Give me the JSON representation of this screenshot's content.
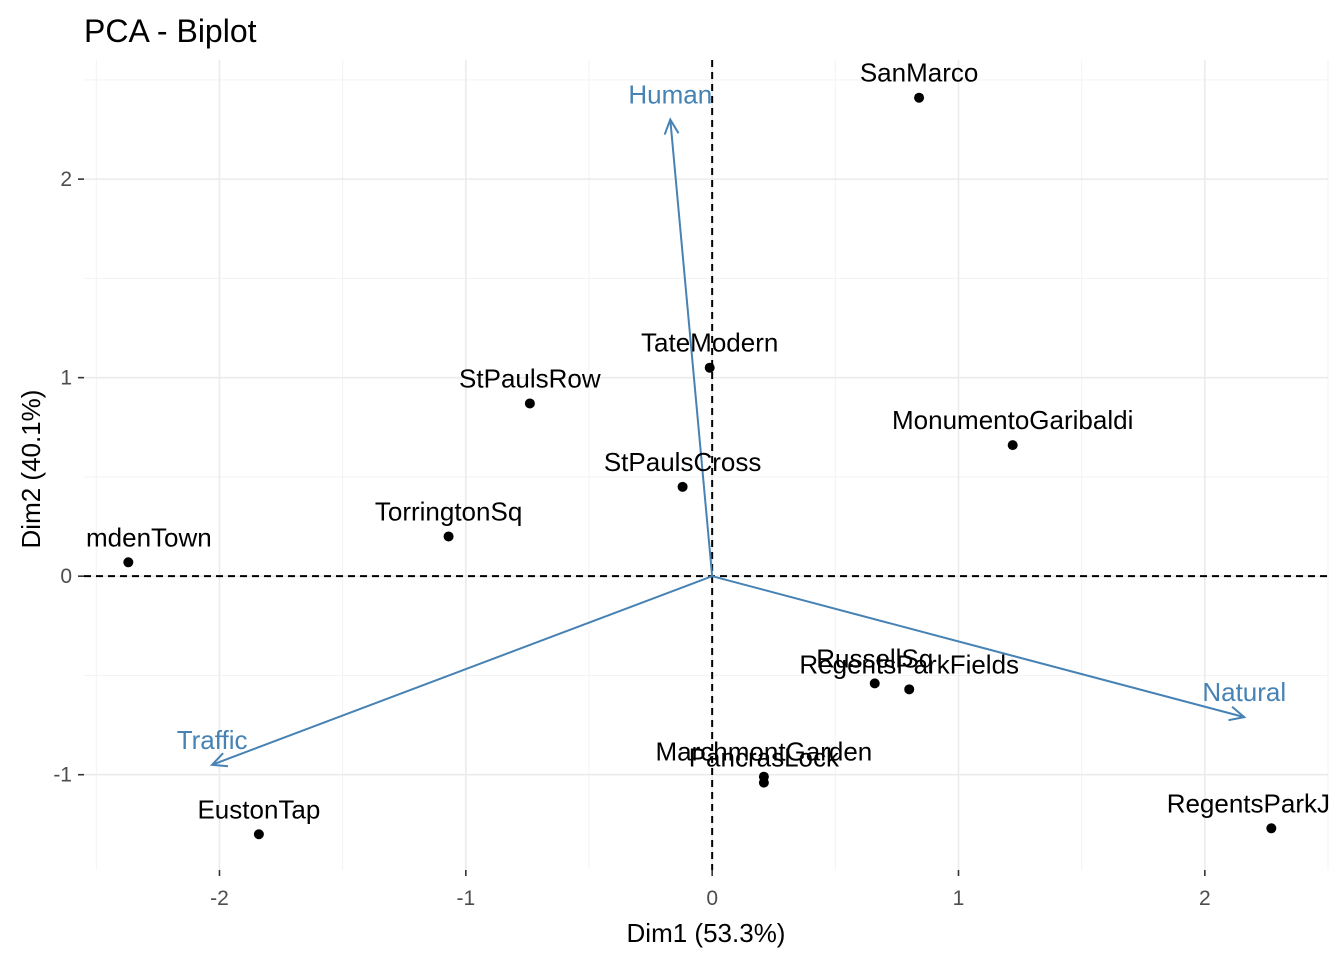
{
  "chart_data": {
    "type": "scatter",
    "title": "PCA - Biplot",
    "xlabel": "Dim1 (53.3%)",
    "ylabel": "Dim2 (40.1%)",
    "xlim": [
      -2.55,
      2.5
    ],
    "ylim": [
      -1.48,
      2.6
    ],
    "x_ticks": [
      -2,
      -1,
      0,
      1,
      2
    ],
    "x_tick_labels": [
      "-2",
      "-1",
      "0",
      "1",
      "2"
    ],
    "y_ticks": [
      -1,
      0,
      1,
      2
    ],
    "y_tick_labels": [
      "-1",
      "0",
      "1",
      "2"
    ],
    "grid": true,
    "reference_lines": {
      "x": 0,
      "y": 0,
      "style": "dashed"
    },
    "point_color": "#000000",
    "vector_color": "#4682b4",
    "points": [
      {
        "label": "SanMarco",
        "x": 0.84,
        "y": 2.41
      },
      {
        "label": "TateModern",
        "x": -0.01,
        "y": 1.05
      },
      {
        "label": "StPaulsRow",
        "x": -0.74,
        "y": 0.87
      },
      {
        "label": "MonumentoGaribaldi",
        "x": 1.22,
        "y": 0.66
      },
      {
        "label": "StPaulsCross",
        "x": -0.12,
        "y": 0.45
      },
      {
        "label": "TorringtonSq",
        "x": -1.07,
        "y": 0.2
      },
      {
        "label": "mdenTown",
        "x": -2.37,
        "y": 0.07
      },
      {
        "label": "RussellSq",
        "x": 0.66,
        "y": -0.54
      },
      {
        "label": "RegentsParkFields",
        "x": 0.8,
        "y": -0.57
      },
      {
        "label": "MarchmontGarden",
        "x": 0.21,
        "y": -1.01
      },
      {
        "label": "PancrasLock",
        "x": 0.21,
        "y": -1.04
      },
      {
        "label": "RegentsParkJ",
        "x": 2.27,
        "y": -1.27
      },
      {
        "label": "EustonTap",
        "x": -1.84,
        "y": -1.3
      }
    ],
    "vectors": [
      {
        "label": "Human",
        "x": -0.17,
        "y": 2.3
      },
      {
        "label": "Natural",
        "x": 2.16,
        "y": -0.71
      },
      {
        "label": "Traffic",
        "x": -2.03,
        "y": -0.95
      }
    ]
  }
}
